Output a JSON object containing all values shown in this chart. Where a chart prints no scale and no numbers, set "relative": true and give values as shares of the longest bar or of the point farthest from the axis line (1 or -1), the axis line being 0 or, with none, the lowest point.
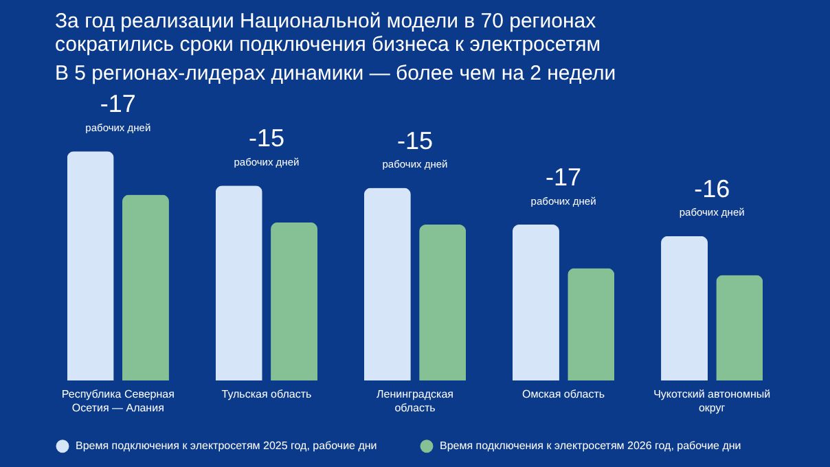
{
  "chart_data": {
    "type": "bar",
    "title": "За год реализации Национальной модели в 70 регионах сократились сроки подключения бизнеса к электросетям",
    "subtitle": "В 5 регионах-лидерах динамики — более чем на 2 недели",
    "categories": [
      "Республика Северная Осетия — Алания",
      "Тульская область",
      "Ленинградская область",
      "Омская область",
      "Чукотский автономный округ"
    ],
    "series": [
      {
        "name": "Время подключения к электросетям 2025 год, рабочие дни",
        "color": "#d6e6f8",
        "values": [
          1,
          0.85,
          0.84,
          0.68,
          0.63
        ]
      },
      {
        "name": "Время подключения к электросетям 2026 год, рабочие дни",
        "color": "#86c196",
        "values": [
          0.81,
          0.69,
          0.68,
          0.49,
          0.46
        ]
      }
    ],
    "relative": true,
    "legend": "bottom",
    "annotations": [
      "-17",
      "рабочих дней",
      "-15",
      "рабочих дней",
      "-15",
      "рабочих дней",
      "-17",
      "рабочих дней",
      "-16",
      "рабочих дней"
    ]
  }
}
